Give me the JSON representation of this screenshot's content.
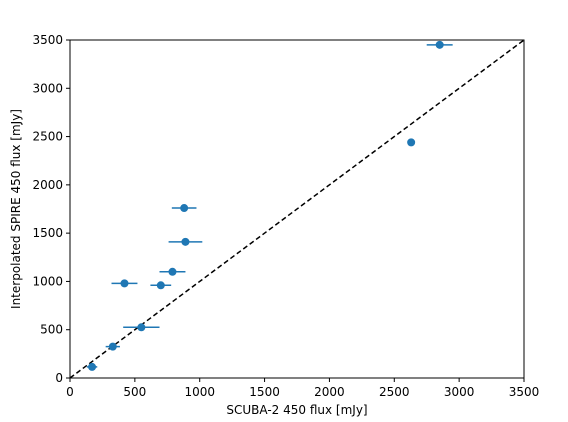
{
  "chart_data": {
    "type": "scatter",
    "title": "",
    "xlabel": "SCUBA-2 450 flux [mJy]",
    "ylabel": "Interpolated SPIRE 450 flux [mJy]",
    "xlim": [
      0,
      3500
    ],
    "ylim": [
      0,
      3500
    ],
    "xticks": [
      0,
      500,
      1000,
      1500,
      2000,
      2500,
      3000,
      3500
    ],
    "yticks": [
      0,
      500,
      1000,
      1500,
      2000,
      2500,
      3000,
      3500
    ],
    "xtick_labels": [
      "0",
      "500",
      "1000",
      "1500",
      "2000",
      "2500",
      "3000",
      "3500"
    ],
    "ytick_labels": [
      "0",
      "500",
      "1000",
      "1500",
      "2000",
      "2500",
      "3000",
      "3500"
    ],
    "grid": false,
    "marker_color": "#1f77b4",
    "reference_line": {
      "style": "dashed",
      "color": "#000000",
      "from": [
        0,
        0
      ],
      "to": [
        3500,
        3500
      ]
    },
    "points": [
      {
        "x": 170,
        "y": 115,
        "xerr": 40
      },
      {
        "x": 330,
        "y": 325,
        "xerr": 55
      },
      {
        "x": 550,
        "y": 525,
        "xerr": 140
      },
      {
        "x": 420,
        "y": 980,
        "xerr": 100
      },
      {
        "x": 700,
        "y": 960,
        "xerr": 80
      },
      {
        "x": 790,
        "y": 1100,
        "xerr": 100
      },
      {
        "x": 890,
        "y": 1410,
        "xerr": 130
      },
      {
        "x": 880,
        "y": 1760,
        "xerr": 95
      },
      {
        "x": 2630,
        "y": 2440,
        "xerr": 25
      },
      {
        "x": 2850,
        "y": 3450,
        "xerr": 100
      }
    ]
  }
}
